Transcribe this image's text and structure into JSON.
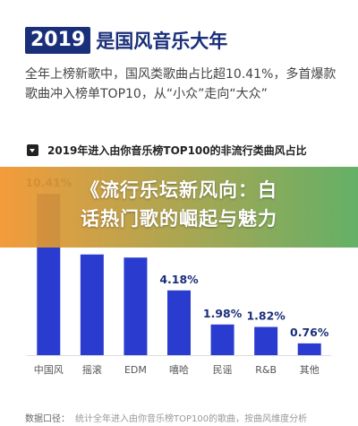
{
  "header": {
    "year": "2019",
    "title": "是国风音乐大年"
  },
  "description": "全年上榜新歌中，国风类歌曲占比超10.41%，多首爆款歌曲冲入榜单TOP10，从“小众”走向“大众”",
  "card": {
    "title": "2019年进入由你音乐榜TOP100的非流行类曲风占比"
  },
  "banner": {
    "line1": "《流行乐坛新风向：白",
    "line2": "话热门歌的崛起与魅力"
  },
  "footnote": {
    "label": "数据口径：",
    "text": "统计全年进入由你音乐榜TOP100的歌曲，按曲风维度分析"
  },
  "colors": {
    "navy": "#1a2f7a",
    "bar": "#2a3ccf",
    "bar_dark": "#1e2c9e"
  },
  "chart_data": {
    "type": "bar",
    "title": "2019年进入由你音乐榜TOP100的非流行类曲风占比",
    "categories": [
      "中国风",
      "摇滚",
      "EDM",
      "嘻哈",
      "民谣",
      "R&B",
      "其他"
    ],
    "values": [
      10.41,
      6.5,
      6.3,
      4.18,
      1.98,
      1.82,
      0.76
    ],
    "data_labels": [
      "10.41%",
      "",
      "",
      "4.18%",
      "1.98%",
      "1.82%",
      "0.76%"
    ],
    "ylim": [
      0,
      11
    ],
    "grid": false,
    "legend": "none"
  }
}
